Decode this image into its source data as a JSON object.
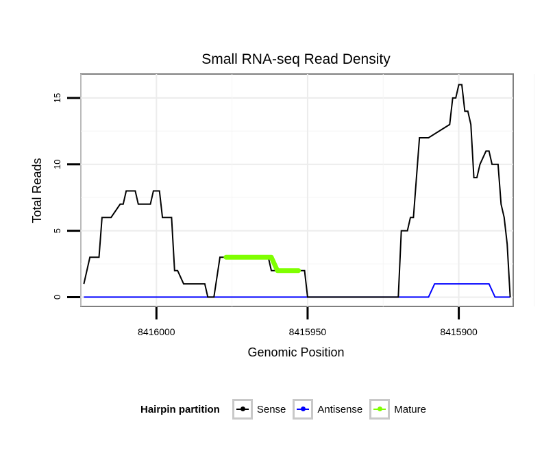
{
  "chart_data": {
    "type": "line",
    "title": "Small RNA-seq Read Density",
    "xlabel": "Genomic Position",
    "ylabel": "Total Reads",
    "xlim": [
      8416025,
      8415882
    ],
    "ylim": [
      -0.7,
      16.8
    ],
    "x_reversed": true,
    "x_ticks": [
      8416000,
      8415950,
      8415900
    ],
    "x_tick_labels": [
      "8416000",
      "8415950",
      "8415900"
    ],
    "y_ticks": [
      0,
      5,
      10,
      15
    ],
    "y_tick_labels": [
      "0",
      "5",
      "10",
      "15"
    ],
    "grid": true,
    "legend_position": "bottom",
    "legend_title": "Hairpin partition",
    "series": [
      {
        "name": "Sense",
        "color": "#000000",
        "x": [
          8416024,
          8416022,
          8416020,
          8416019,
          8416018,
          8416016,
          8416015,
          8416012,
          8416011,
          8416010,
          8416008,
          8416007,
          8416006,
          8416004,
          8416003,
          8416002,
          8416001,
          8415999,
          8415998,
          8415997,
          8415995,
          8415994,
          8415993,
          8415991,
          8415990,
          8415989,
          8415987,
          8415986,
          8415984,
          8415983,
          8415981,
          8415979,
          8415978,
          8415976,
          8415975,
          8415972,
          8415971,
          8415968,
          8415965,
          8415964,
          8415963,
          8415962,
          8415961,
          8415960,
          8415957,
          8415956,
          8415955,
          8415954,
          8415953,
          8415952,
          8415951,
          8415950,
          8415945,
          8415920,
          8415919,
          8415917,
          8415916,
          8415915,
          8415913,
          8415912,
          8415911,
          8415910,
          8415903,
          8415902,
          8415901,
          8415900,
          8415899,
          8415898,
          8415897,
          8415896,
          8415895,
          8415894,
          8415893,
          8415891,
          8415890,
          8415889,
          8415888,
          8415887,
          8415886,
          8415885,
          8415884,
          8415883
        ],
        "y": [
          1,
          3,
          3,
          3,
          6,
          6,
          6,
          7,
          7,
          8,
          8,
          8,
          7,
          7,
          7,
          7,
          8,
          8,
          6,
          6,
          6,
          2,
          2,
          1,
          1,
          1,
          1,
          1,
          1,
          0,
          0,
          3,
          3,
          3,
          3,
          3,
          3,
          3,
          3,
          3,
          3,
          2,
          2,
          2,
          2,
          2,
          2,
          2,
          2,
          2,
          2,
          0,
          0,
          0,
          5,
          5,
          6,
          6,
          12,
          12,
          12,
          12,
          13,
          15,
          15,
          16,
          16,
          14,
          14,
          13,
          9,
          9,
          10,
          11,
          11,
          10,
          10,
          10,
          7,
          6,
          4,
          0
        ]
      },
      {
        "name": "Antisense",
        "color": "#0000ff",
        "x": [
          8416024,
          8415910,
          8415908,
          8415890,
          8415888,
          8415883
        ],
        "y": [
          0,
          0,
          1,
          1,
          0,
          0
        ]
      },
      {
        "name": "Mature",
        "color": "#7fff00",
        "x": [
          8415977,
          8415974,
          8415971,
          8415968,
          8415965,
          8415962,
          8415960,
          8415958,
          8415956,
          8415954,
          8415953
        ],
        "y": [
          3,
          3,
          3,
          3,
          3,
          3,
          2,
          2,
          2,
          2,
          2
        ]
      }
    ]
  }
}
